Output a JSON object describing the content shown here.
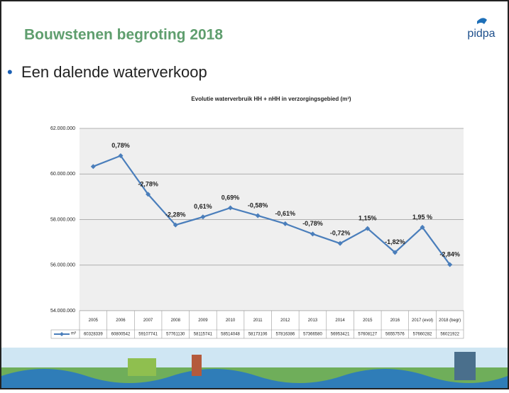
{
  "slide": {
    "title": "Bouwstenen begroting 2018",
    "logo": "pidpa",
    "bullet": "Een dalende waterverkoop"
  },
  "chart_data": {
    "type": "line",
    "title": "Evolutie waterverbruik HH + nHH in verzorgingsgebied (m³)",
    "categories": [
      "2005",
      "2006",
      "2007",
      "2008",
      "2009",
      "2010",
      "2011",
      "2012",
      "2013",
      "2014",
      "2015",
      "2016",
      "2017 (evol)",
      "2018 (begr)"
    ],
    "series": [
      {
        "name": "m³",
        "color": "#4a7ebb",
        "values": [
          60328339,
          60800542,
          59107741,
          57761130,
          58115741,
          58514048,
          58173106,
          57816386,
          57366580,
          56953421,
          57608127,
          56557576,
          57660282,
          56021922
        ],
        "point_labels": [
          null,
          "0,78%",
          "-2,78%",
          "-2,28%",
          "0,61%",
          "0,69%",
          "-0,58%",
          "-0,61%",
          "-0,78%",
          "-0,72%",
          "1,15%",
          "-1,82%",
          "1,95 %",
          "-2,84%"
        ]
      }
    ],
    "ylim": [
      54000000,
      62000000
    ],
    "yticks": [
      {
        "value": 54000000,
        "label": "54.000.000"
      },
      {
        "value": 56000000,
        "label": "56.000.000"
      },
      {
        "value": 58000000,
        "label": "58.000.000"
      },
      {
        "value": 60000000,
        "label": "60.000.000"
      },
      {
        "value": 62000000,
        "label": "62.000.000"
      }
    ],
    "grid": true
  }
}
